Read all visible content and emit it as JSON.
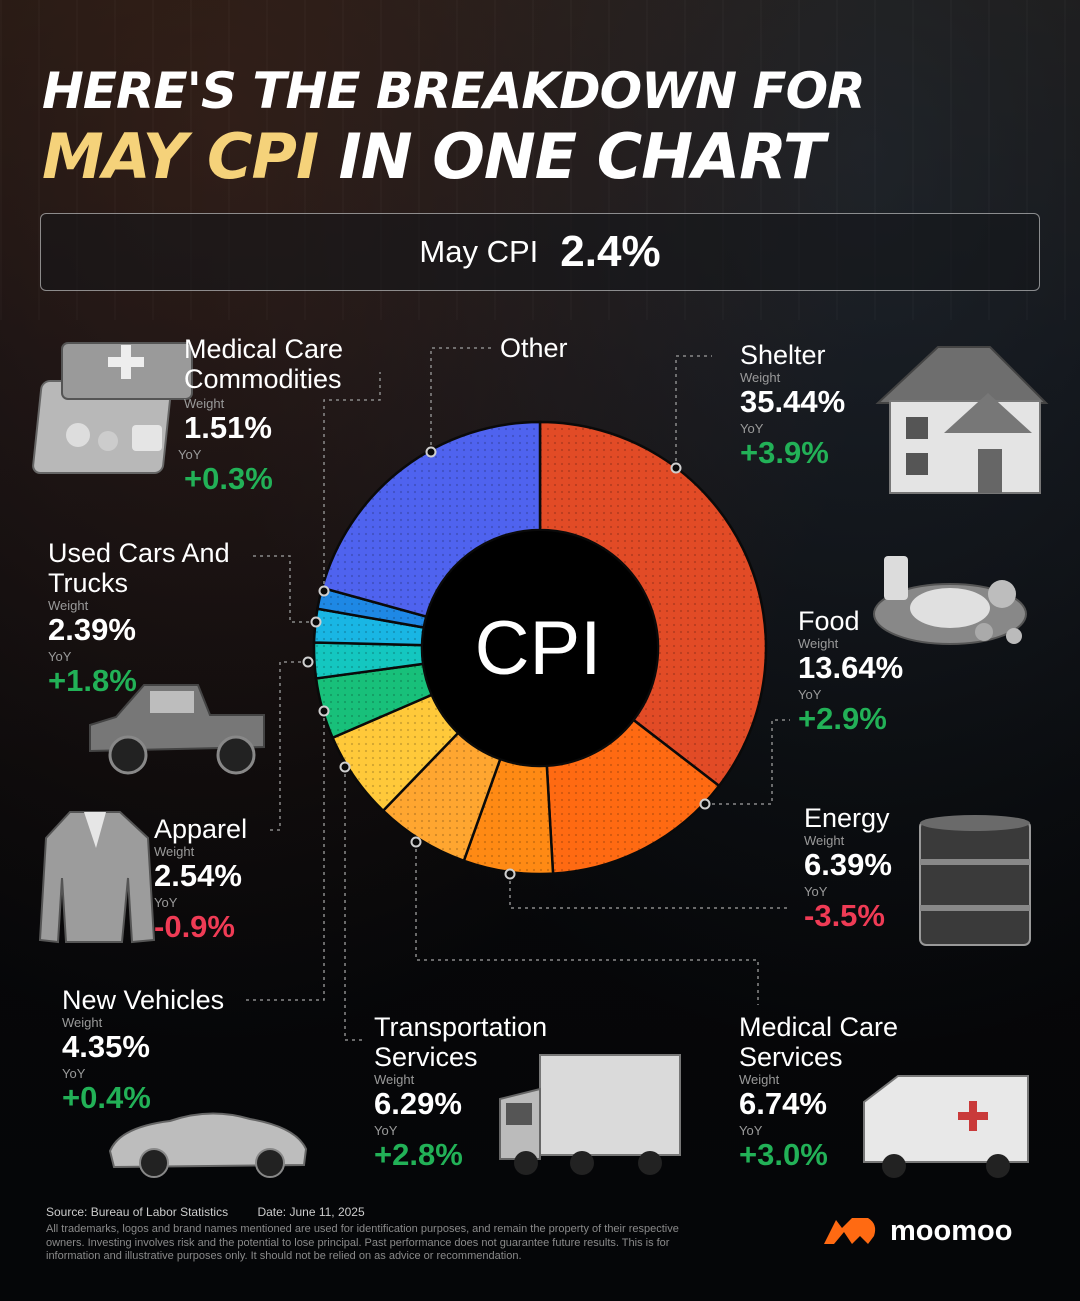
{
  "title": {
    "line1": "HERE'S THE BREAKDOWN FOR",
    "line2_highlight": "MAY CPI",
    "line2_rest": "IN ONE CHART"
  },
  "headline": {
    "label": "May CPI",
    "value": "2.4%"
  },
  "chart_data": {
    "type": "pie",
    "style": "donut",
    "center_label": "CPI",
    "weight_label": "Weight",
    "yoy_label": "YoY",
    "slices": [
      {
        "name": "Shelter",
        "weight": 35.44,
        "weight_text": "35.44%",
        "yoy": 3.9,
        "yoy_text": "+3.9%",
        "color": "#e24b26"
      },
      {
        "name": "Food",
        "weight": 13.64,
        "weight_text": "13.64%",
        "yoy": 2.9,
        "yoy_text": "+2.9%",
        "color": "#ff6a12"
      },
      {
        "name": "Energy",
        "weight": 6.39,
        "weight_text": "6.39%",
        "yoy": -3.5,
        "yoy_text": "-3.5%",
        "color": "#ff8a14"
      },
      {
        "name": "Medical Care Services",
        "weight": 6.74,
        "weight_text": "6.74%",
        "yoy": 3.0,
        "yoy_text": "+3.0%",
        "color": "#ffa630"
      },
      {
        "name": "Transportation Services",
        "weight": 6.29,
        "weight_text": "6.29%",
        "yoy": 2.8,
        "yoy_text": "+2.8%",
        "color": "#ffc93a"
      },
      {
        "name": "New Vehicles",
        "weight": 4.35,
        "weight_text": "4.35%",
        "yoy": 0.4,
        "yoy_text": "+0.4%",
        "color": "#18c07a"
      },
      {
        "name": "Apparel",
        "weight": 2.54,
        "weight_text": "2.54%",
        "yoy": -0.9,
        "yoy_text": "-0.9%",
        "color": "#14c7c0"
      },
      {
        "name": "Used Cars And Trucks",
        "weight": 2.39,
        "weight_text": "2.39%",
        "yoy": 1.8,
        "yoy_text": "+1.8%",
        "color": "#19b6e4"
      },
      {
        "name": "Medical Care Commodities",
        "weight": 1.51,
        "weight_text": "1.51%",
        "yoy": 0.3,
        "yoy_text": "+0.3%",
        "color": "#1e88e5"
      },
      {
        "name": "Other",
        "weight": 20.71,
        "color": "#4f63ef"
      }
    ]
  },
  "labels": {
    "shelter": "Shelter",
    "food": "Food",
    "energy": "Energy",
    "medical_services": "Medical Care\nServices",
    "transportation": "Transportation\nServices",
    "new_vehicles": "New Vehicles",
    "apparel": "Apparel",
    "used_cars": "Used Cars And\nTrucks",
    "medical_commodities": "Medical Care\nCommodities",
    "other": "Other"
  },
  "footer": {
    "source": "Source: Bureau of Labor Statistics",
    "date": "Date: June 11, 2025",
    "disclaimer": "All trademarks, logos and brand names mentioned are used for identification purposes, and remain the property of their respective owners. Investing involves risk and the potential to lose principal. Past performance does not guarantee future results. This is for information and illustrative purposes only. It should not be relied on as advice or recommendation.",
    "brand": "moomoo"
  },
  "colors": {
    "positive": "#22b157",
    "negative": "#ef3b55",
    "title_highlight": "#f5d27a",
    "brand": "#ff6a12"
  },
  "icons": [
    "first-aid-kit-icon",
    "house-icon",
    "food-plate-icon",
    "pickup-truck-icon",
    "oil-barrel-icon",
    "jacket-icon",
    "sports-car-icon",
    "box-truck-icon",
    "ambulance-icon",
    "moomoo-logo-icon"
  ]
}
